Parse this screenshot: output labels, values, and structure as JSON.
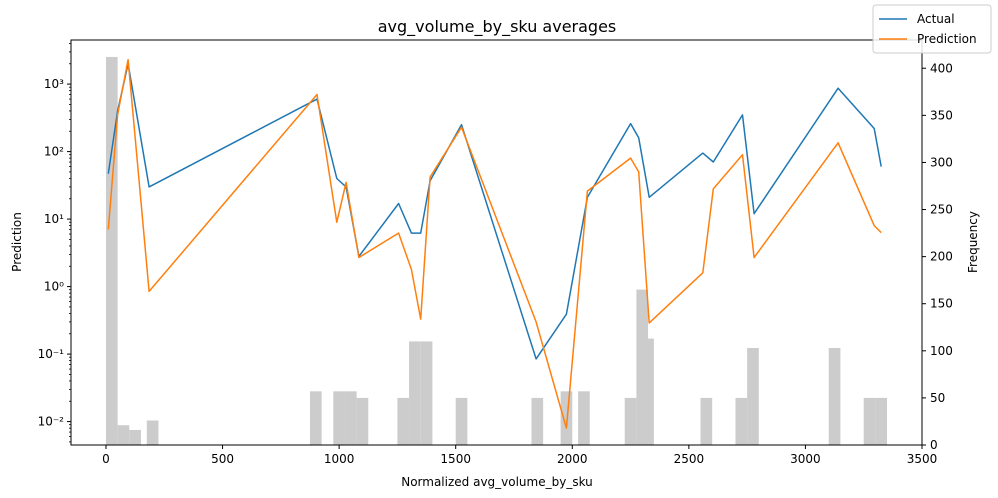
{
  "chart_data": {
    "type": "line",
    "title": "avg_volume_by_sku averages",
    "xlabel": "Normalized avg_volume_by_sku",
    "ylabel": "Prediction",
    "y2label": "Frequency",
    "xlim": [
      -150,
      3500
    ],
    "ylim": [
      0.0045,
      4500
    ],
    "yscale": "log",
    "y2lim": [
      0,
      430
    ],
    "x_ticks": [
      0,
      500,
      1000,
      1500,
      2000,
      2500,
      3000,
      3500
    ],
    "x_tick_labels": [
      "0",
      "500",
      "1000",
      "1500",
      "2000",
      "2500",
      "3000",
      "3500"
    ],
    "y_ticks": [
      0.01,
      0.1,
      1,
      10,
      100,
      1000
    ],
    "y_tick_labels": [
      "10⁻²",
      "10⁻¹",
      "10⁰",
      "10¹",
      "10²",
      "10³"
    ],
    "y2_ticks": [
      0,
      50,
      100,
      150,
      200,
      250,
      300,
      350,
      400
    ],
    "y2_tick_labels": [
      "0",
      "50",
      "100",
      "150",
      "200",
      "250",
      "300",
      "350",
      "400"
    ],
    "legend_position": "top-right",
    "series": [
      {
        "name": "Actual",
        "color": "#1f77b4",
        "x": [
          10,
          50,
          95,
          185,
          905,
          990,
          1030,
          1085,
          1255,
          1310,
          1350,
          1390,
          1525,
          1845,
          1975,
          2065,
          2250,
          2285,
          2330,
          2560,
          2605,
          2730,
          2780,
          3140,
          3295,
          3325
        ],
        "values": [
          47,
          400,
          2000,
          30,
          600,
          40,
          30,
          2.8,
          17,
          6.2,
          6.2,
          37,
          250,
          0.085,
          0.39,
          21,
          260,
          160,
          21,
          95,
          70,
          350,
          12,
          870,
          220,
          60
        ]
      },
      {
        "name": "Prediction",
        "color": "#ff7f0e",
        "x": [
          10,
          50,
          95,
          185,
          905,
          990,
          1030,
          1085,
          1255,
          1310,
          1350,
          1390,
          1525,
          1845,
          1975,
          2065,
          2250,
          2285,
          2330,
          2560,
          2605,
          2730,
          2780,
          3140,
          3295,
          3325
        ],
        "values": [
          7,
          350,
          2300,
          0.85,
          700,
          9,
          35,
          2.7,
          6.2,
          1.8,
          0.33,
          42,
          230,
          0.3,
          0.008,
          26,
          80,
          50,
          0.29,
          1.6,
          28,
          90,
          2.7,
          135,
          8,
          6.3
        ]
      }
    ],
    "histogram": {
      "name": "Frequency",
      "color": "#cccccc",
      "bin_width": 50,
      "bins": [
        {
          "x": 0,
          "count": 412
        },
        {
          "x": 50,
          "count": 21
        },
        {
          "x": 100,
          "count": 16
        },
        {
          "x": 175,
          "count": 26
        },
        {
          "x": 875,
          "count": 57
        },
        {
          "x": 975,
          "count": 57
        },
        {
          "x": 1025,
          "count": 57
        },
        {
          "x": 1075,
          "count": 50
        },
        {
          "x": 1250,
          "count": 50
        },
        {
          "x": 1300,
          "count": 110
        },
        {
          "x": 1350,
          "count": 110
        },
        {
          "x": 1500,
          "count": 50
        },
        {
          "x": 1825,
          "count": 50
        },
        {
          "x": 1950,
          "count": 57
        },
        {
          "x": 2025,
          "count": 57
        },
        {
          "x": 2225,
          "count": 50
        },
        {
          "x": 2275,
          "count": 165
        },
        {
          "x": 2300,
          "count": 113
        },
        {
          "x": 2550,
          "count": 50
        },
        {
          "x": 2700,
          "count": 50
        },
        {
          "x": 2750,
          "count": 103
        },
        {
          "x": 3100,
          "count": 103
        },
        {
          "x": 3250,
          "count": 50
        },
        {
          "x": 3300,
          "count": 50
        }
      ]
    }
  }
}
